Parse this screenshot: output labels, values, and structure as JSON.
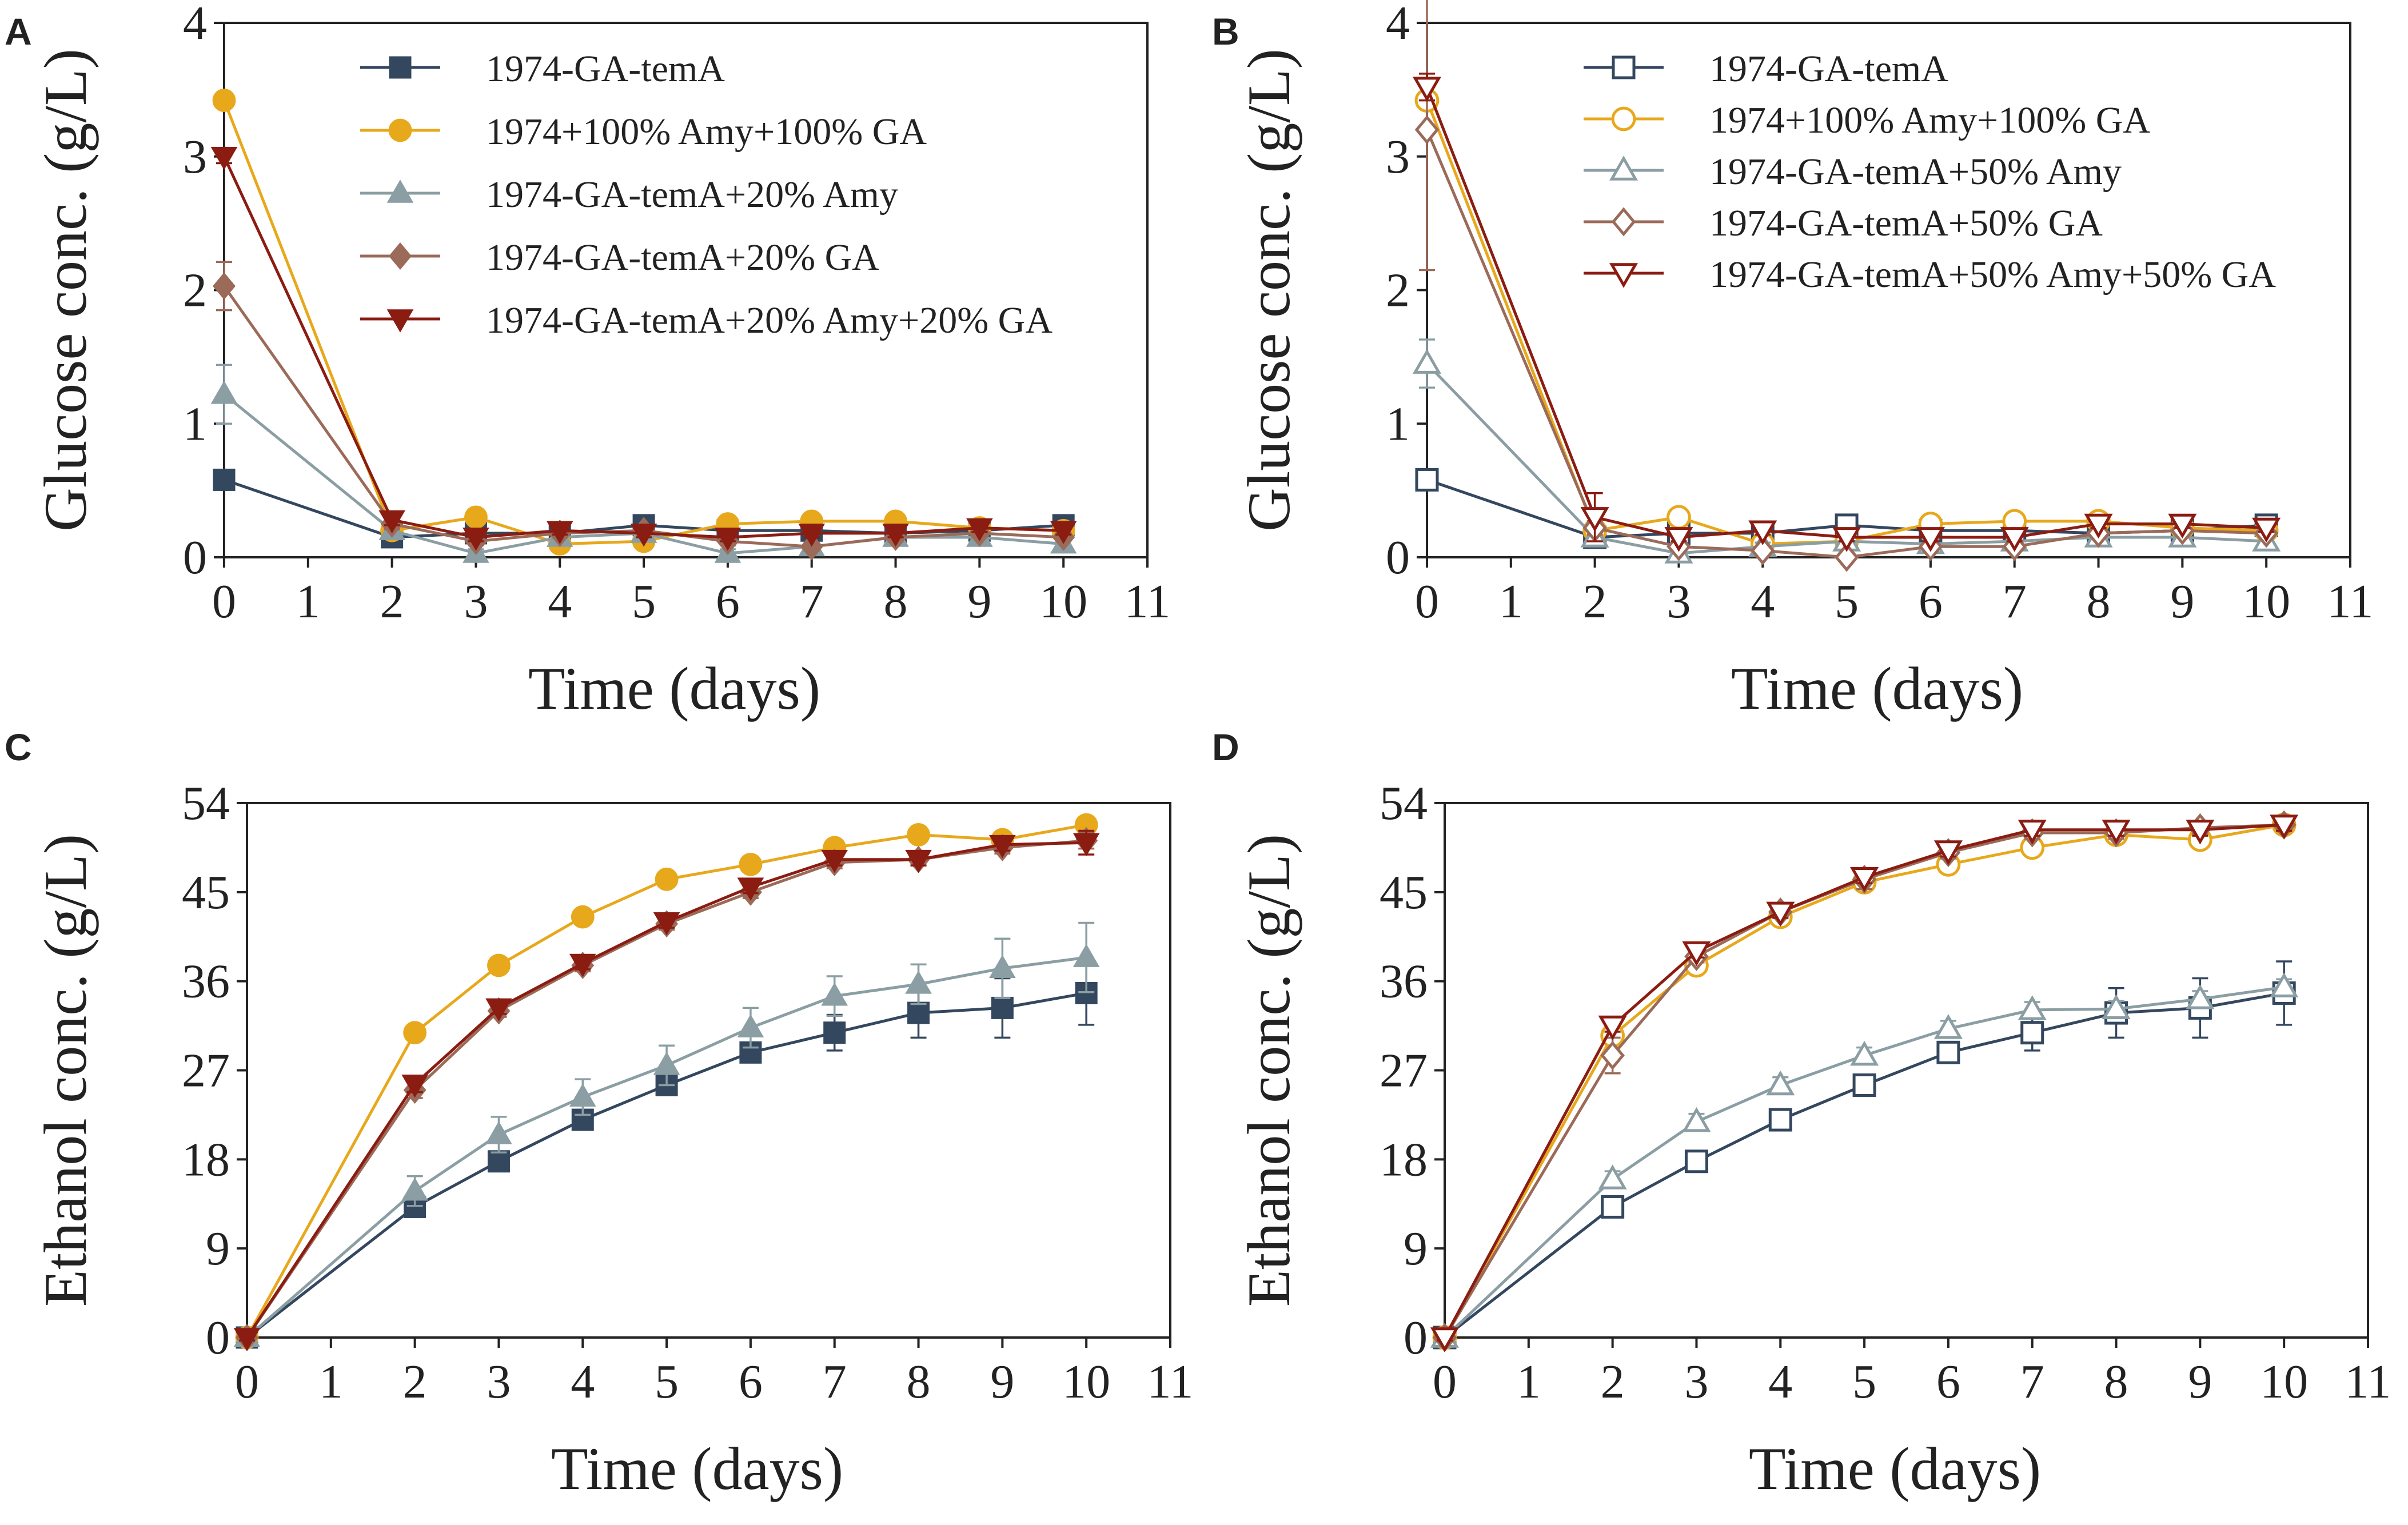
{
  "figure": {
    "panels": [
      "A",
      "B",
      "C",
      "D"
    ]
  },
  "colors": {
    "1974-GA-temA": "#33475f",
    "1974+100% Amy+100% GA": "#e8a81c",
    "1974-GA-temA+20% Amy": "#8a9ea3",
    "1974-GA-temA+20% GA": "#9b6a59",
    "1974-GA-temA+20% Amy+20% GA": "#8b1c12",
    "1974-GA-temA+50% Amy": "#8a9ea3",
    "1974-GA-temA+50% GA": "#9b6a59",
    "1974-GA-temA+50% Amy+50% GA": "#8b1c12"
  },
  "chart_data": [
    {
      "panel": "A",
      "type": "line",
      "title": "",
      "xlabel": "Time (days)",
      "ylabel": "Glucose conc. (g/L)",
      "xlim": [
        0,
        11
      ],
      "ylim": [
        0,
        4
      ],
      "xticks": [
        0,
        1,
        2,
        3,
        4,
        5,
        6,
        7,
        8,
        9,
        10,
        11
      ],
      "yticks": [
        0,
        1,
        2,
        3,
        4
      ],
      "legend_position": "top",
      "x": [
        0,
        2,
        3,
        4,
        5,
        6,
        7,
        8,
        9,
        10
      ],
      "series": [
        {
          "name": "1974-GA-temA",
          "marker": "square",
          "filled": true,
          "color": "#33475f",
          "values": [
            0.58,
            0.15,
            0.18,
            0.18,
            0.24,
            0.2,
            0.2,
            0.18,
            0.2,
            0.24
          ],
          "errors": [
            0.05,
            0.03,
            0.03,
            0.03,
            0.05,
            0.06,
            0.05,
            0.04,
            0.05,
            0.05
          ]
        },
        {
          "name": "1974+100% Amy+100% GA",
          "marker": "circle",
          "filled": true,
          "color": "#e8a81c",
          "values": [
            3.42,
            0.2,
            0.3,
            0.1,
            0.12,
            0.25,
            0.27,
            0.27,
            0.22,
            0.2
          ],
          "errors": [
            0.05,
            0.03,
            0.03,
            0.03,
            0.03,
            0.03,
            0.03,
            0.03,
            0.03,
            0.03
          ]
        },
        {
          "name": "1974-GA-temA+20% Amy",
          "marker": "triangle-up",
          "filled": true,
          "color": "#8a9ea3",
          "values": [
            1.22,
            0.2,
            0.03,
            0.15,
            0.18,
            0.03,
            0.08,
            0.15,
            0.15,
            0.1
          ],
          "errors": [
            0.22,
            0.05,
            0.03,
            0.03,
            0.04,
            0.03,
            0.03,
            0.03,
            0.03,
            0.03
          ]
        },
        {
          "name": "1974-GA-temA+20% GA",
          "marker": "diamond",
          "filled": true,
          "color": "#9b6a59",
          "values": [
            2.03,
            0.25,
            0.12,
            0.18,
            0.2,
            0.12,
            0.08,
            0.15,
            0.18,
            0.15
          ],
          "errors": [
            0.18,
            0.04,
            0.03,
            0.03,
            0.03,
            0.03,
            0.03,
            0.03,
            0.03,
            0.03
          ]
        },
        {
          "name": "1974-GA-temA+20% Amy+20% GA",
          "marker": "triangle-down",
          "filled": true,
          "color": "#8b1c12",
          "values": [
            3.0,
            0.28,
            0.15,
            0.2,
            0.18,
            0.15,
            0.18,
            0.18,
            0.22,
            0.2
          ],
          "errors": [
            0.05,
            0.04,
            0.03,
            0.03,
            0.03,
            0.03,
            0.03,
            0.03,
            0.03,
            0.03
          ]
        }
      ]
    },
    {
      "panel": "B",
      "type": "line",
      "title": "",
      "xlabel": "Time (days)",
      "ylabel": "Glucose conc. (g/L)",
      "xlim": [
        0,
        11
      ],
      "ylim": [
        0,
        4
      ],
      "xticks": [
        0,
        1,
        2,
        3,
        4,
        5,
        6,
        7,
        8,
        9,
        10,
        11
      ],
      "yticks": [
        0,
        1,
        2,
        3,
        4
      ],
      "legend_position": "top",
      "x": [
        0,
        2,
        3,
        4,
        5,
        6,
        7,
        8,
        9,
        10
      ],
      "series": [
        {
          "name": "1974-GA-temA",
          "marker": "square",
          "filled": false,
          "color": "#33475f",
          "values": [
            0.58,
            0.15,
            0.18,
            0.18,
            0.24,
            0.2,
            0.2,
            0.18,
            0.2,
            0.24
          ],
          "errors": [
            0.05,
            0.03,
            0.03,
            0.03,
            0.05,
            0.06,
            0.05,
            0.04,
            0.05,
            0.05
          ]
        },
        {
          "name": "1974+100% Amy+100% GA",
          "marker": "circle",
          "filled": false,
          "color": "#e8a81c",
          "values": [
            3.42,
            0.2,
            0.3,
            0.1,
            0.12,
            0.25,
            0.27,
            0.27,
            0.22,
            0.2
          ],
          "errors": [
            0.05,
            0.03,
            0.03,
            0.03,
            0.03,
            0.03,
            0.03,
            0.03,
            0.03,
            0.03
          ]
        },
        {
          "name": "1974-GA-temA+50% Amy",
          "marker": "triangle-up",
          "filled": false,
          "color": "#8a9ea3",
          "values": [
            1.45,
            0.15,
            0.03,
            0.08,
            0.12,
            0.1,
            0.12,
            0.15,
            0.15,
            0.12
          ],
          "errors": [
            0.18,
            0.04,
            0.03,
            0.03,
            0.03,
            0.03,
            0.03,
            0.03,
            0.03,
            0.03
          ]
        },
        {
          "name": "1974-GA-temA+50% GA",
          "marker": "diamond",
          "filled": false,
          "color": "#9b6a59",
          "values": [
            3.2,
            0.22,
            0.08,
            0.05,
            0.0,
            0.08,
            0.08,
            0.18,
            0.2,
            0.18
          ],
          "errors": [
            1.05,
            0.05,
            0.03,
            0.03,
            0.03,
            0.03,
            0.03,
            0.03,
            0.03,
            0.03
          ]
        },
        {
          "name": "1974-GA-temA+50% Amy+50% GA",
          "marker": "triangle-down",
          "filled": false,
          "color": "#8b1c12",
          "values": [
            3.52,
            0.3,
            0.15,
            0.2,
            0.15,
            0.15,
            0.15,
            0.25,
            0.25,
            0.22
          ],
          "errors": [
            0.1,
            0.18,
            0.03,
            0.03,
            0.03,
            0.03,
            0.03,
            0.03,
            0.03,
            0.03
          ]
        }
      ]
    },
    {
      "panel": "C",
      "type": "line",
      "title": "",
      "xlabel": "Time (days)",
      "ylabel": "Ethanol conc. (g/L)",
      "xlim": [
        0,
        11
      ],
      "ylim": [
        0,
        54
      ],
      "xticks": [
        0,
        1,
        2,
        3,
        4,
        5,
        6,
        7,
        8,
        9,
        10,
        11
      ],
      "yticks": [
        0,
        9,
        18,
        27,
        36,
        45,
        54
      ],
      "x": [
        0,
        2,
        3,
        4,
        5,
        6,
        7,
        8,
        9,
        10
      ],
      "series": [
        {
          "name": "1974-GA-temA",
          "marker": "square",
          "filled": true,
          "color": "#33475f",
          "values": [
            0,
            13.2,
            17.8,
            22,
            25.5,
            28.8,
            30.8,
            32.8,
            33.3,
            34.8
          ],
          "errors": [
            0.4,
            0.8,
            1.0,
            1.0,
            1.0,
            1.0,
            1.8,
            2.5,
            3.0,
            3.2
          ]
        },
        {
          "name": "1974+100% Amy+100% GA",
          "marker": "circle",
          "filled": true,
          "color": "#e8a81c",
          "values": [
            0,
            30.8,
            37.6,
            42.5,
            46.3,
            47.8,
            49.5,
            50.8,
            50.3,
            51.8
          ],
          "errors": [
            0.3,
            0.5,
            0.5,
            0.5,
            0.5,
            0.5,
            0.5,
            0.5,
            0.5,
            0.5
          ]
        },
        {
          "name": "1974-GA-temA+20% Amy",
          "marker": "triangle-up",
          "filled": true,
          "color": "#8a9ea3",
          "values": [
            0,
            14.8,
            20.5,
            24.3,
            27.5,
            31.3,
            34.5,
            35.7,
            37.3,
            38.4
          ],
          "errors": [
            0.4,
            1.5,
            1.8,
            1.8,
            2.0,
            2.0,
            2.0,
            2.0,
            3.0,
            3.5
          ]
        },
        {
          "name": "1974-GA-temA+20% GA",
          "marker": "diamond",
          "filled": true,
          "color": "#9b6a59",
          "values": [
            0,
            25,
            33,
            37.6,
            41.8,
            45,
            48,
            48.3,
            49.5,
            50.2
          ],
          "errors": [
            0.3,
            0.8,
            0.6,
            0.6,
            0.6,
            0.6,
            0.6,
            0.6,
            0.6,
            0.8
          ]
        },
        {
          "name": "1974-GA-temA+20% Amy+20% GA",
          "marker": "triangle-down",
          "filled": true,
          "color": "#8b1c12",
          "values": [
            0,
            25.6,
            33.3,
            37.8,
            42,
            45.5,
            48.3,
            48.3,
            49.8,
            50
          ],
          "errors": [
            0.3,
            0.8,
            0.6,
            0.6,
            0.6,
            0.6,
            0.6,
            0.6,
            0.6,
            1.2
          ]
        }
      ]
    },
    {
      "panel": "D",
      "type": "line",
      "title": "",
      "xlabel": "Time (days)",
      "ylabel": "Ethanol conc. (g/L)",
      "xlim": [
        0,
        11
      ],
      "ylim": [
        0,
        54
      ],
      "xticks": [
        0,
        1,
        2,
        3,
        4,
        5,
        6,
        7,
        8,
        9,
        10,
        11
      ],
      "yticks": [
        0,
        9,
        18,
        27,
        36,
        45,
        54
      ],
      "x": [
        0,
        2,
        3,
        4,
        5,
        6,
        7,
        8,
        9,
        10
      ],
      "series": [
        {
          "name": "1974-GA-temA",
          "marker": "square",
          "filled": false,
          "color": "#33475f",
          "values": [
            0,
            13.2,
            17.8,
            22,
            25.5,
            28.8,
            30.8,
            32.8,
            33.3,
            34.8
          ],
          "errors": [
            0.4,
            0.8,
            1.0,
            1.0,
            1.0,
            1.0,
            1.8,
            2.5,
            3.0,
            3.2
          ]
        },
        {
          "name": "1974+100% Amy+100% GA",
          "marker": "circle",
          "filled": false,
          "color": "#e8a81c",
          "values": [
            0,
            30.5,
            37.6,
            42.5,
            46,
            47.8,
            49.5,
            50.8,
            50.3,
            51.8
          ],
          "errors": [
            0.3,
            0.5,
            0.5,
            0.5,
            0.5,
            0.5,
            0.5,
            0.5,
            0.5,
            0.5
          ]
        },
        {
          "name": "1974-GA-temA+50% Amy",
          "marker": "triangle-up",
          "filled": false,
          "color": "#8a9ea3",
          "values": [
            0,
            16,
            21.8,
            25.5,
            28.5,
            31.2,
            33.1,
            33.2,
            34.2,
            35.4
          ],
          "errors": [
            0.4,
            0.8,
            0.8,
            0.8,
            0.8,
            0.8,
            0.8,
            0.8,
            0.8,
            0.8
          ]
        },
        {
          "name": "1974-GA-temA+50% GA",
          "marker": "diamond",
          "filled": false,
          "color": "#9b6a59",
          "values": [
            0,
            28.5,
            38.5,
            43,
            46.3,
            49,
            51,
            51,
            51.5,
            51.8
          ],
          "errors": [
            0.3,
            1.8,
            0.6,
            0.6,
            1.0,
            0.6,
            0.6,
            0.6,
            0.6,
            0.6
          ]
        },
        {
          "name": "1974-GA-temA+50% Amy+50% GA",
          "marker": "triangle-down",
          "filled": false,
          "color": "#8b1c12",
          "values": [
            0,
            31.5,
            39,
            43,
            46.5,
            49.2,
            51.3,
            51.3,
            51.3,
            51.8
          ],
          "errors": [
            0.3,
            0.6,
            0.6,
            0.6,
            0.6,
            0.6,
            0.6,
            0.6,
            0.6,
            0.6
          ]
        }
      ]
    }
  ]
}
